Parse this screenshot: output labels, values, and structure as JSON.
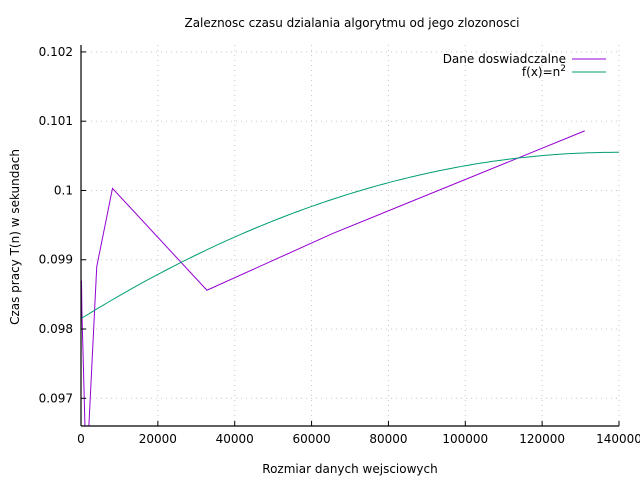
{
  "chart_data": {
    "type": "line",
    "title": "Zaleznosc czasu dzialania algorytmu od jego zlozonosci",
    "xlabel": "Rozmiar danych wejsciowych",
    "ylabel": "Czas pracy T(n) w sekundach",
    "xlim": [
      0,
      140000
    ],
    "ylim": [
      0.0966,
      0.1021
    ],
    "x_ticks": [
      0,
      20000,
      40000,
      60000,
      80000,
      100000,
      120000,
      140000
    ],
    "x_tick_labels": [
      "0",
      "20000",
      "40000",
      "60000",
      "80000",
      "100000",
      "120000",
      "140000"
    ],
    "y_ticks": [
      0.097,
      0.098,
      0.099,
      0.1,
      0.101,
      0.102
    ],
    "y_tick_labels": [
      "0.097",
      "0.098",
      "0.099",
      "0.1",
      "0.101",
      "0.102"
    ],
    "grid": true,
    "legend_position": "top-right",
    "series": [
      {
        "name": "Dane doswiadczalne",
        "color": "#9400d3",
        "x": [
          128,
          256,
          512,
          1024,
          2048,
          4096,
          8192,
          32768,
          65536,
          131072
        ],
        "y": [
          0.0987,
          0.0982,
          0.0977,
          0.0966,
          0.0966,
          0.0989,
          0.10003,
          0.09856,
          0.09938,
          0.10086
        ]
      },
      {
        "name": "f(x)=n",
        "name_superscript": "2",
        "color": "#009e73",
        "function": "quadratic_fit",
        "coefficients": {
          "a": -1.23e-13,
          "b": 3.437e-08,
          "c": 0.09815
        },
        "x_range": [
          0,
          140000
        ]
      }
    ]
  }
}
